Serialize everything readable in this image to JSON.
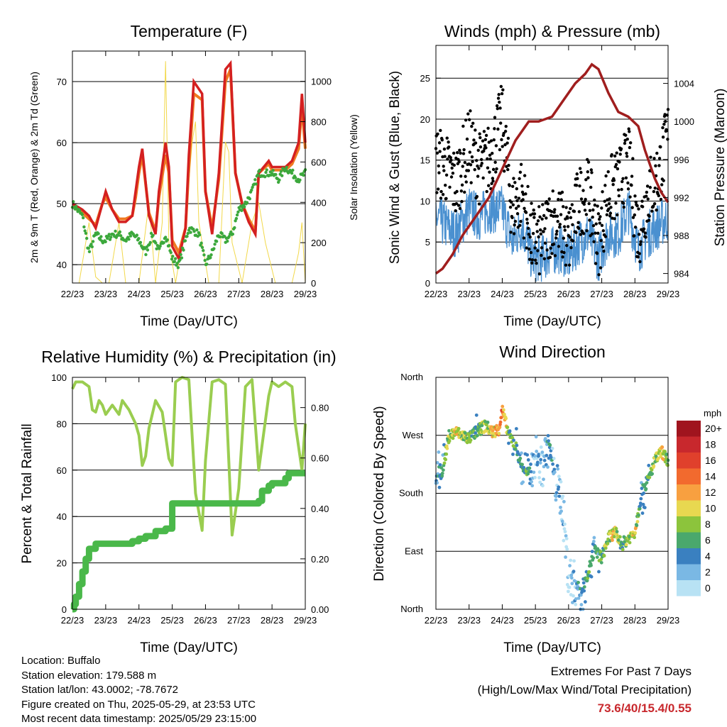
{
  "x_ticks": [
    "22/23",
    "23/23",
    "24/23",
    "25/23",
    "26/23",
    "27/23",
    "28/23",
    "29/23"
  ],
  "chart_data": [
    {
      "type": "line",
      "title": "Temperature (F)",
      "xlabel": "Time (Day/UTC)",
      "ylabel": "2m & 9m T (Red, Orange) & 2m Td (Green)",
      "y2label": "Solar Insolation (Yellow)",
      "ylim": [
        37,
        75
      ],
      "yticks": [
        40,
        50,
        60,
        70
      ],
      "y2lim": [
        0,
        1150
      ],
      "y2ticks": [
        0,
        200,
        400,
        600,
        800,
        1000
      ],
      "xlim": [
        0,
        7
      ],
      "grid": true,
      "colors": {
        "t2m": "#d42020",
        "t9m": "#f07a22",
        "td": "#3ca83c",
        "solar": "#f2d84a"
      },
      "series": [
        {
          "name": "2m T",
          "axis": "left",
          "x": [
            0,
            0.3,
            0.5,
            0.7,
            0.9,
            1.0,
            1.2,
            1.4,
            1.6,
            1.8,
            1.9,
            2.0,
            2.1,
            2.3,
            2.5,
            2.6,
            2.8,
            2.9,
            3.0,
            3.2,
            3.4,
            3.5,
            3.65,
            3.9,
            4.0,
            4.2,
            4.4,
            4.6,
            4.75,
            4.9,
            5.1,
            5.3,
            5.5,
            5.6,
            5.9,
            6.0,
            6.2,
            6.4,
            6.6,
            6.8,
            6.9,
            7.0
          ],
          "y": [
            50,
            49,
            48,
            46,
            50,
            52,
            49,
            47,
            47,
            48,
            52,
            56,
            59,
            48,
            45,
            52,
            60,
            56,
            43,
            41,
            46,
            58,
            70,
            68,
            52,
            45,
            55,
            72,
            73,
            55,
            50,
            47,
            45,
            55,
            57,
            56,
            56,
            56,
            57,
            60,
            68,
            60
          ]
        },
        {
          "name": "9m T",
          "axis": "left",
          "x": [
            0,
            0.3,
            0.5,
            0.7,
            0.9,
            1.0,
            1.2,
            1.4,
            1.6,
            1.8,
            1.9,
            2.0,
            2.1,
            2.3,
            2.5,
            2.6,
            2.8,
            2.9,
            3.0,
            3.2,
            3.4,
            3.5,
            3.65,
            3.9,
            4.0,
            4.2,
            4.4,
            4.6,
            4.75,
            4.9,
            5.1,
            5.3,
            5.5,
            5.6,
            5.9,
            6.0,
            6.2,
            6.4,
            6.6,
            6.8,
            6.9,
            7.0
          ],
          "y": [
            49.5,
            48.5,
            47.5,
            46.5,
            50,
            51,
            49,
            47.5,
            47.5,
            48,
            51,
            55,
            58,
            48.5,
            45.5,
            51,
            58,
            55,
            44,
            42,
            46,
            56,
            68,
            67,
            52,
            46,
            54,
            70,
            72,
            55,
            50,
            47.5,
            45.5,
            55,
            56.5,
            55.5,
            55.5,
            55.5,
            56.5,
            59,
            66,
            59
          ]
        },
        {
          "name": "2m Td",
          "axis": "left",
          "x": [
            0,
            0.3,
            0.5,
            0.7,
            0.9,
            1.0,
            1.2,
            1.4,
            1.6,
            1.8,
            2.0,
            2.2,
            2.4,
            2.6,
            2.8,
            3.0,
            3.2,
            3.5,
            3.8,
            4.0,
            4.2,
            4.4,
            4.6,
            4.8,
            5.0,
            5.2,
            5.4,
            5.6,
            5.8,
            6.0,
            6.2,
            6.4,
            6.6,
            6.8,
            7.0
          ],
          "y": [
            50,
            48,
            42,
            45,
            44,
            44,
            45,
            45,
            44,
            45,
            44,
            42,
            45,
            42,
            45,
            41,
            40,
            46,
            45,
            40,
            42,
            45,
            44,
            45,
            49,
            50,
            52,
            55,
            55,
            55,
            54,
            56,
            55,
            54,
            55
          ]
        },
        {
          "name": "Solar",
          "axis": "right",
          "x": [
            0,
            0.2,
            0.5,
            0.7,
            0.9,
            1.1,
            1.4,
            1.6,
            1.8,
            2.0,
            2.3,
            2.5,
            2.7,
            2.8,
            2.9,
            3.1,
            3.4,
            3.6,
            3.7,
            3.8,
            4.1,
            4.4,
            4.6,
            4.7,
            4.8,
            5.1,
            5.4,
            5.6,
            5.8,
            6.1,
            6.4,
            6.6,
            6.8,
            6.9,
            7.0
          ],
          "y": [
            0,
            0,
            300,
            30,
            0,
            0,
            300,
            0,
            0,
            0,
            400,
            0,
            300,
            1100,
            200,
            0,
            300,
            700,
            800,
            300,
            0,
            0,
            700,
            650,
            200,
            0,
            300,
            400,
            200,
            0,
            0,
            0,
            150,
            300,
            0
          ]
        }
      ]
    },
    {
      "type": "scatter",
      "title": "Winds (mph) & Pressure (mb)",
      "xlabel": "Time (Day/UTC)",
      "ylabel": "Sonic Wind & Gust (Blue, Black)",
      "y2label": "Station Pressure (Maroon)",
      "ylim": [
        0,
        29
      ],
      "yticks": [
        0,
        5,
        10,
        15,
        20,
        25
      ],
      "y2lim": [
        983,
        1008
      ],
      "y2ticks": [
        984,
        988,
        992,
        996,
        1000,
        1004
      ],
      "xlim": [
        0,
        7
      ],
      "grid": true,
      "colors": {
        "wind": "#4a90d0",
        "gust": "#000000",
        "pressure": "#a01e1e"
      },
      "series": [
        {
          "name": "Wind",
          "axis": "left",
          "x": [
            0,
            0.3,
            0.6,
            1.0,
            1.3,
            1.6,
            2.0,
            2.3,
            2.6,
            2.9,
            3.2,
            3.5,
            3.8,
            4.0,
            4.3,
            4.6,
            4.9,
            5.2,
            5.5,
            5.8,
            6.1,
            6.4,
            6.7,
            7.0
          ],
          "y": [
            8,
            7,
            6,
            9,
            8,
            9,
            9,
            5,
            7,
            3,
            3,
            4,
            4,
            3,
            5,
            6,
            3,
            6,
            6,
            9,
            4,
            6,
            7,
            8
          ]
        },
        {
          "name": "Gust",
          "axis": "left",
          "x": [
            0,
            0.3,
            0.6,
            1.0,
            1.3,
            1.6,
            2.0,
            2.3,
            2.6,
            2.9,
            3.2,
            3.5,
            3.8,
            4.0,
            4.3,
            4.6,
            4.9,
            5.2,
            5.5,
            5.8,
            6.1,
            6.4,
            6.7,
            7.0
          ],
          "y": [
            15,
            14,
            12,
            17,
            14,
            15,
            20,
            9,
            11,
            5,
            5,
            8,
            7,
            5,
            10,
            11,
            5,
            11,
            12,
            15,
            6,
            11,
            13,
            18
          ]
        },
        {
          "name": "Pressure",
          "axis": "right",
          "x": [
            0,
            0.2,
            0.5,
            0.8,
            1.2,
            1.6,
            2.0,
            2.4,
            2.8,
            3.1,
            3.5,
            3.8,
            4.2,
            4.5,
            4.7,
            4.9,
            5.2,
            5.5,
            5.8,
            6.1,
            6.3,
            6.6,
            6.8,
            7.0
          ],
          "y": [
            984,
            984.5,
            986,
            988,
            990,
            992,
            995,
            998,
            1000,
            1000,
            1000.5,
            1002,
            1004,
            1005,
            1006,
            1005.5,
            1003,
            1001,
            1000.5,
            999.5,
            997,
            994,
            992.5,
            991.5
          ]
        }
      ]
    },
    {
      "type": "line",
      "title": "Relative Humidity (%) & Precipitation (in)",
      "xlabel": "Time (Day/UTC)",
      "ylabel": "Percent & Total Rainfall",
      "ylim": [
        0,
        100
      ],
      "yticks": [
        0,
        20,
        40,
        60,
        80,
        100
      ],
      "y2lim": [
        0,
        0.92
      ],
      "y2ticks": [
        "0.00",
        "0.20",
        "0.40",
        "0.60",
        "0.80"
      ],
      "xlim": [
        0,
        7
      ],
      "grid": true,
      "colors": {
        "rh": "#9acd50",
        "precip": "#4ab84a"
      },
      "series": [
        {
          "name": "RH",
          "axis": "left",
          "x": [
            0,
            0.1,
            0.3,
            0.5,
            0.6,
            0.7,
            0.8,
            0.9,
            1.0,
            1.2,
            1.4,
            1.5,
            1.7,
            1.9,
            2.0,
            2.1,
            2.2,
            2.3,
            2.5,
            2.7,
            2.9,
            3.0,
            3.1,
            3.3,
            3.5,
            3.7,
            3.9,
            4.0,
            4.2,
            4.4,
            4.6,
            4.8,
            5.0,
            5.2,
            5.4,
            5.6,
            5.9,
            6.0,
            6.2,
            6.4,
            6.6,
            6.7,
            6.9,
            7.0
          ],
          "y": [
            95,
            98,
            98,
            96,
            86,
            85,
            90,
            88,
            84,
            88,
            84,
            90,
            86,
            80,
            75,
            62,
            66,
            78,
            90,
            85,
            65,
            62,
            98,
            100,
            99,
            50,
            34,
            64,
            98,
            99,
            97,
            32,
            52,
            96,
            99,
            60,
            92,
            98,
            96,
            98,
            96,
            80,
            60,
            80
          ]
        },
        {
          "name": "Precip",
          "axis": "right",
          "x": [
            0,
            0.05,
            0.1,
            0.2,
            0.3,
            0.4,
            0.5,
            0.7,
            1.0,
            1.5,
            1.8,
            2.0,
            2.2,
            2.5,
            2.8,
            2.9,
            3.0,
            3.5,
            4.0,
            4.5,
            5.0,
            5.4,
            5.5,
            5.6,
            5.7,
            5.9,
            6.0,
            6.4,
            6.5,
            7.0
          ],
          "y": [
            0,
            0.02,
            0.05,
            0.1,
            0.15,
            0.2,
            0.24,
            0.26,
            0.26,
            0.26,
            0.27,
            0.28,
            0.29,
            0.31,
            0.32,
            0.32,
            0.42,
            0.42,
            0.42,
            0.42,
            0.42,
            0.42,
            0.42,
            0.43,
            0.47,
            0.49,
            0.5,
            0.52,
            0.54,
            0.54
          ]
        }
      ]
    },
    {
      "type": "scatter",
      "title": "Wind Direction",
      "xlabel": "Time (Day/UTC)",
      "ylabel": "Direction (Colored By Speed)",
      "ycategories": [
        "North",
        "East",
        "South",
        "West",
        "North"
      ],
      "ylim": [
        0,
        360
      ],
      "xlim": [
        0,
        7
      ],
      "grid": true,
      "legend": {
        "placement": "right",
        "title": "mph",
        "labels": [
          "20+",
          "18",
          "16",
          "14",
          "12",
          "10",
          "8",
          "6",
          "4",
          "2",
          "0"
        ],
        "colors": [
          "#a0141e",
          "#c8282d",
          "#e0402c",
          "#f26a2e",
          "#f8a040",
          "#e8d850",
          "#8cc43c",
          "#4aa86c",
          "#3a80c0",
          "#7ab8e4",
          "#b8e2f4"
        ]
      },
      "series": [
        {
          "name": "Direction",
          "x": [
            0,
            0.2,
            0.4,
            0.6,
            0.8,
            1.0,
            1.2,
            1.5,
            1.7,
            1.9,
            2.0,
            2.2,
            2.4,
            2.6,
            2.8,
            3.0,
            3.2,
            3.4,
            3.6,
            3.8,
            4.0,
            4.2,
            4.4,
            4.6,
            4.8,
            5.0,
            5.2,
            5.4,
            5.6,
            5.8,
            6.0,
            6.2,
            6.4,
            6.6,
            6.8,
            7.0
          ],
          "y": [
            210,
            215,
            270,
            275,
            270,
            265,
            275,
            285,
            275,
            280,
            310,
            270,
            255,
            220,
            210,
            240,
            220,
            260,
            200,
            170,
            50,
            40,
            25,
            60,
            90,
            80,
            110,
            120,
            100,
            110,
            120,
            180,
            200,
            230,
            245,
            230
          ],
          "speed": [
            4,
            5,
            8,
            10,
            8,
            7,
            6,
            8,
            10,
            12,
            14,
            6,
            6,
            4,
            6,
            2,
            2,
            4,
            2,
            2,
            0,
            2,
            4,
            6,
            4,
            6,
            8,
            10,
            6,
            8,
            10,
            4,
            6,
            8,
            10,
            8
          ]
        }
      ]
    }
  ],
  "info": {
    "location": "Location: Buffalo",
    "elevation": "Station elevation: 179.588 m",
    "latlon": "Station lat/lon: 43.0002; -78.7672",
    "created": "Figure created on Thu, 2025-05-29, at 23:53 UTC",
    "recent": "Most recent data timestamp: 2025/05/29 23:15:00"
  },
  "extremes": {
    "line1": "Extremes For Past 7 Days",
    "line2": "(High/Low/Max Wind/Total Precipitation)",
    "values": "73.6/40/15.4/0.55"
  }
}
